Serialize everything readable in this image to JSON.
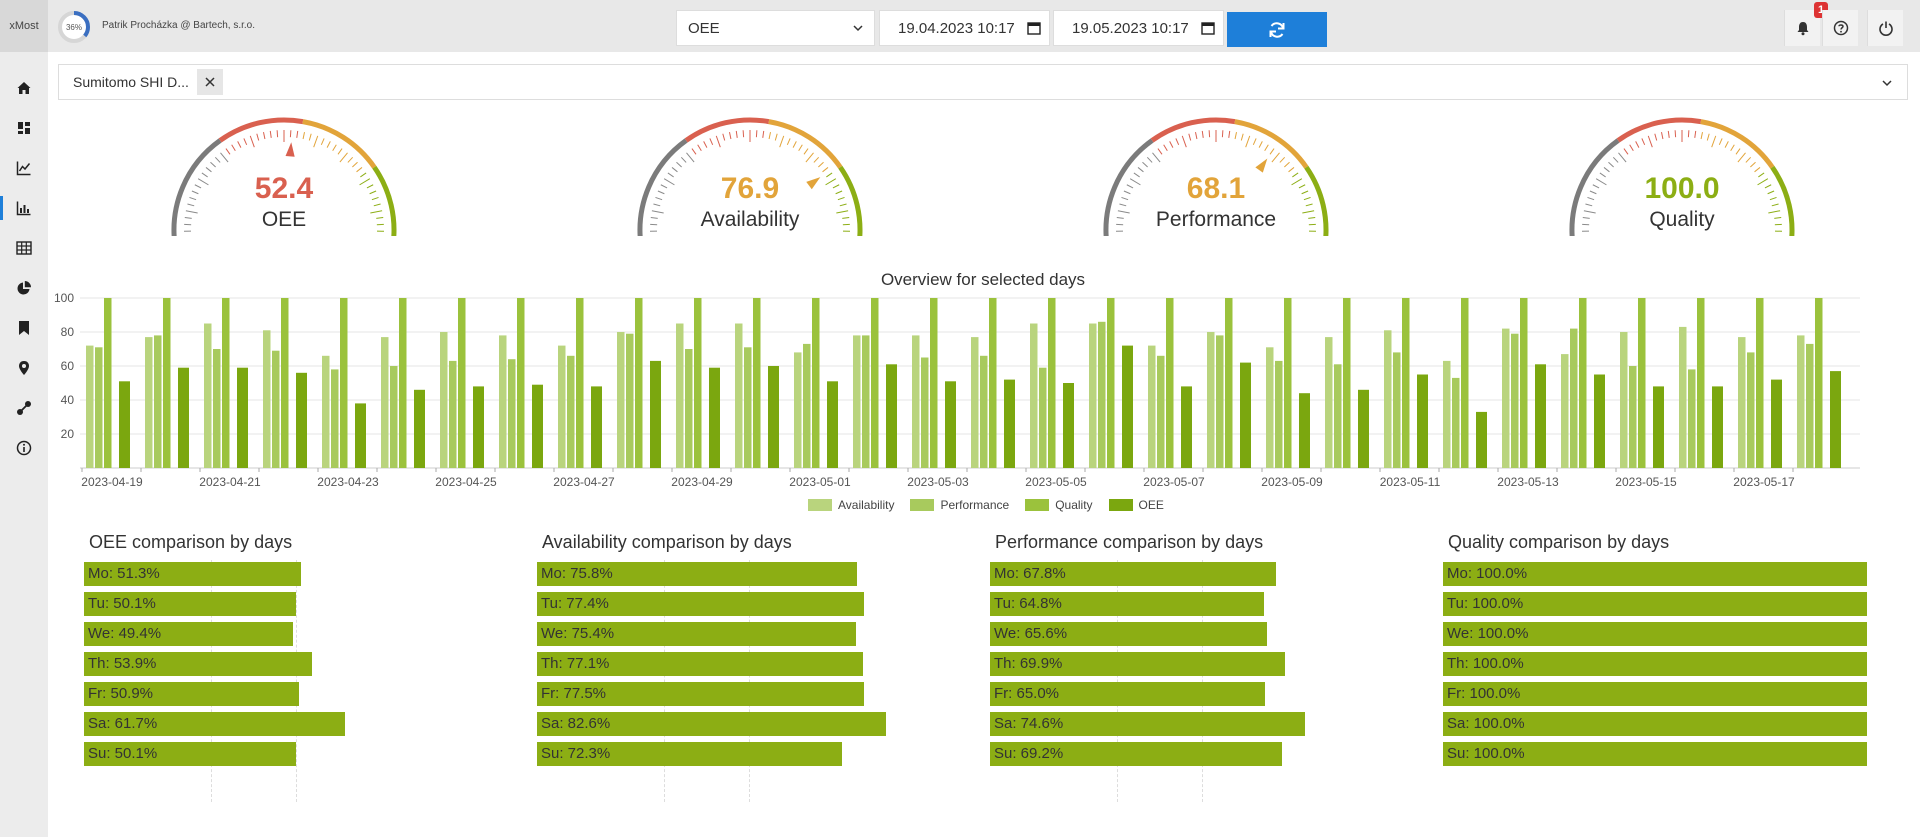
{
  "app": {
    "brand": "xMost",
    "progress_label": "36%",
    "progress_fraction": 0.36,
    "user": "Patrik Procházka @ Bartech, s.r.o."
  },
  "toolbar": {
    "metric_select": "OEE",
    "date_from": "19.04.2023 10:17",
    "date_to": "19.05.2023 10:17",
    "notification_count": "1",
    "icons": [
      "bell-icon",
      "help-icon",
      "power-icon"
    ]
  },
  "sidebar": {
    "items": [
      "home-icon",
      "dashboard-icon",
      "line-chart-icon",
      "bar-chart-icon",
      "table-icon",
      "pie-chart-icon",
      "bookmark-icon",
      "location-icon",
      "connection-icon",
      "info-icon"
    ],
    "active_index": 3
  },
  "filter": {
    "chip_label": "Sumitomo SHI D..."
  },
  "gauges": [
    {
      "value": "52.4",
      "label": "OEE",
      "color": "#d9604f"
    },
    {
      "value": "76.9",
      "label": "Availability",
      "color": "#e2a43a"
    },
    {
      "value": "68.1",
      "label": "Performance",
      "color": "#e2a43a"
    },
    {
      "value": "100.0",
      "label": "Quality",
      "color": "#8cae14"
    }
  ],
  "chart_data": {
    "type": "bar",
    "title": "Overview for selected days",
    "ylim": [
      0,
      100
    ],
    "yticks": [
      20,
      40,
      60,
      80,
      100
    ],
    "x_tick_labels": [
      "2023-04-19",
      "2023-04-21",
      "2023-04-23",
      "2023-04-25",
      "2023-04-27",
      "2023-04-29",
      "2023-05-01",
      "2023-05-03",
      "2023-05-05",
      "2023-05-07",
      "2023-05-09",
      "2023-05-11",
      "2023-05-13",
      "2023-05-15",
      "2023-05-17"
    ],
    "categories": [
      "2023-04-19",
      "2023-04-20",
      "2023-04-21",
      "2023-04-22",
      "2023-04-23",
      "2023-04-24",
      "2023-04-25",
      "2023-04-26",
      "2023-04-27",
      "2023-04-28",
      "2023-04-29",
      "2023-04-30",
      "2023-05-01",
      "2023-05-02",
      "2023-05-03",
      "2023-05-04",
      "2023-05-05",
      "2023-05-06",
      "2023-05-07",
      "2023-05-08",
      "2023-05-09",
      "2023-05-10",
      "2023-05-11",
      "2023-05-12",
      "2023-05-13",
      "2023-05-14",
      "2023-05-15",
      "2023-05-16",
      "2023-05-17",
      "2023-05-18"
    ],
    "series": [
      {
        "name": "Availability",
        "color": "#b9d47d",
        "values": [
          72,
          77,
          85,
          81,
          66,
          77,
          80,
          78,
          72,
          80,
          85,
          85,
          68,
          78,
          78,
          77,
          85,
          85,
          72,
          80,
          71,
          77,
          81,
          63,
          82,
          67,
          80,
          83,
          77,
          78
        ]
      },
      {
        "name": "Performance",
        "color": "#a8ca5d",
        "values": [
          71,
          78,
          70,
          69,
          58,
          60,
          63,
          64,
          66,
          79,
          70,
          71,
          73,
          78,
          65,
          66,
          59,
          86,
          66,
          78,
          63,
          61,
          68,
          53,
          79,
          82,
          60,
          58,
          68,
          73
        ]
      },
      {
        "name": "Quality",
        "color": "#9bc23c",
        "values": [
          100,
          100,
          100,
          100,
          100,
          100,
          100,
          100,
          100,
          100,
          100,
          100,
          100,
          100,
          100,
          100,
          100,
          100,
          100,
          100,
          100,
          100,
          100,
          100,
          100,
          100,
          100,
          100,
          100,
          100
        ]
      },
      {
        "name": "OEE",
        "color": "#7ba70f",
        "values": [
          51,
          59,
          59,
          56,
          38,
          46,
          48,
          49,
          48,
          63,
          59,
          60,
          51,
          61,
          51,
          52,
          50,
          72,
          48,
          62,
          44,
          46,
          55,
          33,
          61,
          55,
          48,
          48,
          52,
          57
        ]
      }
    ],
    "legend_position": "bottom",
    "grid": true
  },
  "comparisons": [
    {
      "title": "OEE comparison by days",
      "rows": [
        {
          "label": "Mo: 51.3%",
          "value": 51.3
        },
        {
          "label": "Tu: 50.1%",
          "value": 50.1
        },
        {
          "label": "We: 49.4%",
          "value": 49.4
        },
        {
          "label": "Th: 53.9%",
          "value": 53.9
        },
        {
          "label": "Fr: 50.9%",
          "value": 50.9
        },
        {
          "label": "Sa: 61.7%",
          "value": 61.7
        },
        {
          "label": "Su: 50.1%",
          "value": 50.1
        }
      ]
    },
    {
      "title": "Availability comparison by days",
      "rows": [
        {
          "label": "Mo: 75.8%",
          "value": 75.8
        },
        {
          "label": "Tu: 77.4%",
          "value": 77.4
        },
        {
          "label": "We: 75.4%",
          "value": 75.4
        },
        {
          "label": "Th: 77.1%",
          "value": 77.1
        },
        {
          "label": "Fr: 77.5%",
          "value": 77.5
        },
        {
          "label": "Sa: 82.6%",
          "value": 82.6
        },
        {
          "label": "Su: 72.3%",
          "value": 72.3
        }
      ]
    },
    {
      "title": "Performance comparison by days",
      "rows": [
        {
          "label": "Mo: 67.8%",
          "value": 67.8
        },
        {
          "label": "Tu: 64.8%",
          "value": 64.8
        },
        {
          "label": "We: 65.6%",
          "value": 65.6
        },
        {
          "label": "Th: 69.9%",
          "value": 69.9
        },
        {
          "label": "Fr: 65.0%",
          "value": 65.0
        },
        {
          "label": "Sa: 74.6%",
          "value": 74.6
        },
        {
          "label": "Su: 69.2%",
          "value": 69.2
        }
      ]
    },
    {
      "title": "Quality comparison by days",
      "rows": [
        {
          "label": "Mo: 100.0%",
          "value": 100.0
        },
        {
          "label": "Tu: 100.0%",
          "value": 100.0
        },
        {
          "label": "We: 100.0%",
          "value": 100.0
        },
        {
          "label": "Th: 100.0%",
          "value": 100.0
        },
        {
          "label": "Fr: 100.0%",
          "value": 100.0
        },
        {
          "label": "Sa: 100.0%",
          "value": 100.0
        },
        {
          "label": "Su: 100.0%",
          "value": 100.0
        }
      ]
    }
  ]
}
